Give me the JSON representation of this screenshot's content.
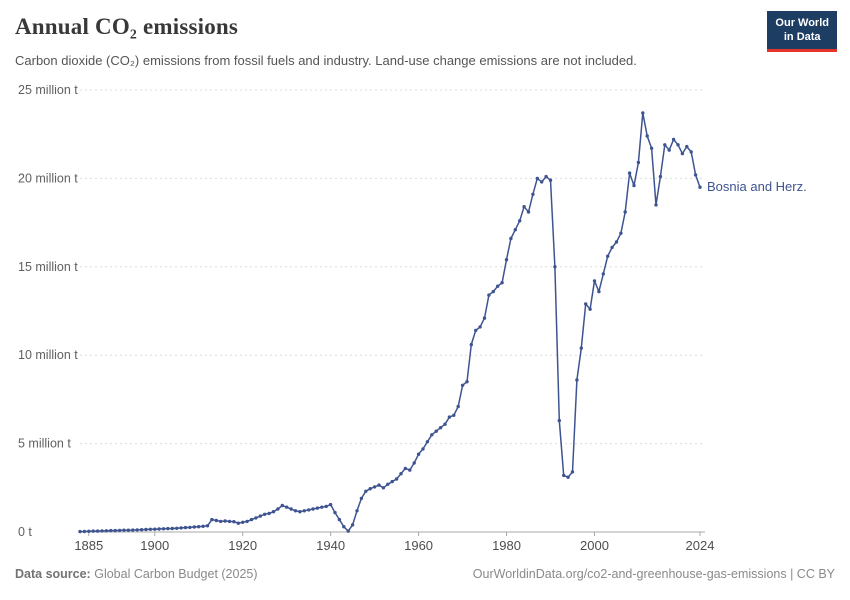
{
  "header": {
    "title": "Annual CO₂ emissions",
    "subtitle": "Carbon dioxide (CO₂) emissions from fossil fuels and industry. Land-use change emissions are not included."
  },
  "logo": {
    "line1": "Our World",
    "line2": "in Data",
    "bg": "#1d3d63",
    "accent": "#e5352b"
  },
  "footer": {
    "source_label": "Data source:",
    "source_value": "Global Carbon Budget (2025)",
    "link": "OurWorldinData.org/co2-and-greenhouse-gas-emissions | CC BY"
  },
  "chart_data": {
    "type": "line",
    "title": "Annual CO₂ emissions",
    "entity": "Bosnia and Herz.",
    "unit": "million tonnes of CO₂",
    "grid": "horizontal-dashed",
    "legend_position": "end-of-line-label",
    "xlim": [
      1883,
      2024
    ],
    "ylim": [
      0,
      25
    ],
    "xticks": [
      1885,
      1900,
      1920,
      1940,
      1960,
      1980,
      2000,
      2024
    ],
    "yticks": [
      {
        "value": 0,
        "label": "0 t"
      },
      {
        "value": 5,
        "label": "5 million t"
      },
      {
        "value": 10,
        "label": "10 million t"
      },
      {
        "value": 15,
        "label": "15 million t"
      },
      {
        "value": 20,
        "label": "20 million t"
      },
      {
        "value": 25,
        "label": "25 million t"
      }
    ],
    "series": [
      {
        "name": "Bosnia and Herz.",
        "color": "#3e5491",
        "x": [
          1883,
          1884,
          1885,
          1886,
          1887,
          1888,
          1889,
          1890,
          1891,
          1892,
          1893,
          1894,
          1895,
          1896,
          1897,
          1898,
          1899,
          1900,
          1901,
          1902,
          1903,
          1904,
          1905,
          1906,
          1907,
          1908,
          1909,
          1910,
          1911,
          1912,
          1913,
          1914,
          1915,
          1916,
          1917,
          1918,
          1919,
          1920,
          1921,
          1922,
          1923,
          1924,
          1925,
          1926,
          1927,
          1928,
          1929,
          1930,
          1931,
          1932,
          1933,
          1934,
          1935,
          1936,
          1937,
          1938,
          1939,
          1940,
          1941,
          1942,
          1943,
          1944,
          1945,
          1946,
          1947,
          1948,
          1949,
          1950,
          1951,
          1952,
          1953,
          1954,
          1955,
          1956,
          1957,
          1958,
          1959,
          1960,
          1961,
          1962,
          1963,
          1964,
          1965,
          1966,
          1967,
          1968,
          1969,
          1970,
          1971,
          1972,
          1973,
          1974,
          1975,
          1976,
          1977,
          1978,
          1979,
          1980,
          1981,
          1982,
          1983,
          1984,
          1985,
          1986,
          1987,
          1988,
          1989,
          1990,
          1991,
          1992,
          1993,
          1994,
          1995,
          1996,
          1997,
          1998,
          1999,
          2000,
          2001,
          2002,
          2003,
          2004,
          2005,
          2006,
          2007,
          2008,
          2009,
          2010,
          2011,
          2012,
          2013,
          2014,
          2015,
          2016,
          2017,
          2018,
          2019,
          2020,
          2021,
          2022,
          2023,
          2024
        ],
        "y": [
          0.02,
          0.03,
          0.04,
          0.05,
          0.05,
          0.06,
          0.07,
          0.08,
          0.08,
          0.09,
          0.1,
          0.1,
          0.11,
          0.12,
          0.13,
          0.14,
          0.15,
          0.16,
          0.17,
          0.18,
          0.19,
          0.2,
          0.21,
          0.23,
          0.25,
          0.26,
          0.28,
          0.3,
          0.32,
          0.35,
          0.7,
          0.65,
          0.6,
          0.62,
          0.6,
          0.58,
          0.5,
          0.55,
          0.6,
          0.7,
          0.8,
          0.9,
          1.0,
          1.05,
          1.15,
          1.3,
          1.5,
          1.4,
          1.3,
          1.2,
          1.15,
          1.2,
          1.25,
          1.3,
          1.35,
          1.4,
          1.45,
          1.55,
          1.1,
          0.7,
          0.3,
          0.05,
          0.4,
          1.2,
          1.9,
          2.3,
          2.45,
          2.55,
          2.65,
          2.5,
          2.7,
          2.85,
          3.0,
          3.3,
          3.6,
          3.5,
          3.9,
          4.4,
          4.7,
          5.1,
          5.5,
          5.7,
          5.9,
          6.1,
          6.5,
          6.6,
          7.1,
          8.3,
          8.5,
          10.6,
          11.4,
          11.6,
          12.1,
          13.4,
          13.6,
          13.9,
          14.1,
          15.4,
          16.6,
          17.1,
          17.6,
          18.4,
          18.1,
          19.1,
          20.0,
          19.8,
          20.1,
          19.9,
          15.0,
          6.3,
          3.2,
          3.1,
          3.4,
          8.6,
          10.4,
          12.9,
          12.6,
          14.2,
          13.6,
          14.6,
          15.6,
          16.1,
          16.4,
          16.9,
          18.1,
          20.3,
          19.6,
          20.9,
          23.7,
          22.4,
          21.7,
          18.5,
          20.1,
          21.9,
          21.6,
          22.2,
          21.9,
          21.4,
          21.8,
          21.5,
          20.2,
          19.5
        ]
      }
    ]
  }
}
